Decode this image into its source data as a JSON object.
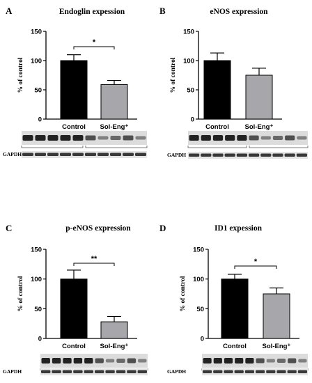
{
  "chart_data": [
    {
      "panel": "A",
      "type": "bar",
      "title": "Endoglin expession",
      "ylabel": "% of control",
      "ylim": [
        0,
        150
      ],
      "yticks": [
        "0",
        "50",
        "100",
        "150"
      ],
      "categories": [
        "Control",
        "Sol-Eng⁺"
      ],
      "values": [
        100,
        59
      ],
      "errors": [
        10,
        7
      ],
      "colors": [
        "#000000",
        "#a6a6ab"
      ],
      "significance": "*",
      "blot_label": "GAPDH"
    },
    {
      "panel": "B",
      "type": "bar",
      "title": "eNOS expression",
      "ylabel": "% of control",
      "ylim": [
        0,
        150
      ],
      "yticks": [
        "0",
        "50",
        "100",
        "150"
      ],
      "categories": [
        "Control",
        "Sol-Eng⁺"
      ],
      "values": [
        100,
        75
      ],
      "errors": [
        13,
        12
      ],
      "colors": [
        "#000000",
        "#a6a6ab"
      ],
      "significance": "",
      "blot_label": "GAPDH"
    },
    {
      "panel": "C",
      "type": "bar",
      "title": "p-eNOS expression",
      "ylabel": "% of control",
      "ylim": [
        0,
        150
      ],
      "yticks": [
        "0",
        "50",
        "100",
        "150"
      ],
      "categories": [
        "Control",
        "Sol-Eng⁺"
      ],
      "values": [
        100,
        28
      ],
      "errors": [
        15,
        9
      ],
      "colors": [
        "#000000",
        "#a6a6ab"
      ],
      "significance": "**",
      "blot_label": "GAPDH"
    },
    {
      "panel": "D",
      "type": "bar",
      "title": "ID1 expession",
      "ylabel": "% of control",
      "ylim": [
        0,
        150
      ],
      "yticks": [
        "0",
        "50",
        "100",
        "150"
      ],
      "categories": [
        "Control",
        "Sol-Eng⁺"
      ],
      "values": [
        100,
        75
      ],
      "errors": [
        8,
        10
      ],
      "colors": [
        "#000000",
        "#a6a6ab"
      ],
      "significance": "*",
      "blot_label": "GAPDH"
    }
  ]
}
